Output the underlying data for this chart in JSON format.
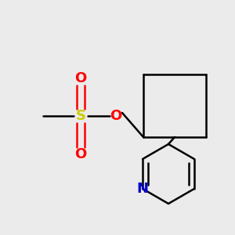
{
  "bg_color": "#ebebeb",
  "bond_color": "#000000",
  "S_color": "#cccc00",
  "O_color": "#ff0000",
  "N_color": "#0000cc",
  "line_width": 1.8,
  "font_size": 13,
  "fig_size": [
    3.0,
    3.0
  ],
  "dpi": 100,
  "xlim": [
    0,
    300
  ],
  "ylim": [
    0,
    300
  ]
}
